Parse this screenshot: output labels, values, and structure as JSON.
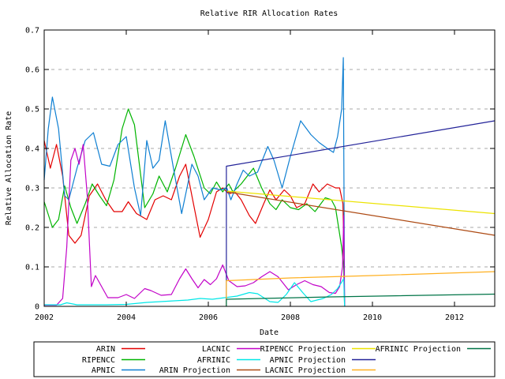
{
  "style": {
    "background": "#ffffff",
    "frame_color": "#000000",
    "grid_color": "#a9a9a9",
    "text_color": "#000000"
  },
  "chart_data": {
    "type": "line",
    "title": "Relative RIR Allocation Rates",
    "xlabel": "Date",
    "ylabel": "Relative Allocation Rate",
    "xlim": [
      2002,
      2012.98
    ],
    "ylim": [
      0,
      0.7
    ],
    "grid": "horizontal dashed gridlines at 0.1 through 0.6",
    "legend_position": "boxed legend centered below plot, 4 columns x 3 rows, column-major",
    "x_ticks": {
      "values": [
        2002,
        2004,
        2006,
        2008,
        2010,
        2012
      ],
      "labels": [
        "2002",
        "2004",
        "2006",
        "2008",
        "2010",
        "2012"
      ]
    },
    "y_ticks": {
      "values": [
        0,
        0.1,
        0.2,
        0.3,
        0.4,
        0.5,
        0.6,
        0.7
      ],
      "labels": [
        "0",
        "0.1",
        "0.2",
        "0.3",
        "0.4",
        "0.5",
        "0.6",
        "0.7"
      ]
    },
    "projection_start_x": 2006.44,
    "actual_data_end_x": 2009.3,
    "series": [
      {
        "name": "ARIN",
        "color": "#e30000",
        "points": [
          [
            2002.0,
            0.42
          ],
          [
            2002.15,
            0.35
          ],
          [
            2002.3,
            0.41
          ],
          [
            2002.45,
            0.33
          ],
          [
            2002.6,
            0.18
          ],
          [
            2002.75,
            0.16
          ],
          [
            2002.9,
            0.18
          ],
          [
            2003.1,
            0.28
          ],
          [
            2003.3,
            0.31
          ],
          [
            2003.5,
            0.27
          ],
          [
            2003.7,
            0.24
          ],
          [
            2003.9,
            0.24
          ],
          [
            2004.05,
            0.265
          ],
          [
            2004.25,
            0.235
          ],
          [
            2004.5,
            0.22
          ],
          [
            2004.7,
            0.27
          ],
          [
            2004.9,
            0.28
          ],
          [
            2005.1,
            0.27
          ],
          [
            2005.3,
            0.33
          ],
          [
            2005.45,
            0.36
          ],
          [
            2005.6,
            0.28
          ],
          [
            2005.8,
            0.175
          ],
          [
            2006.0,
            0.22
          ],
          [
            2006.2,
            0.29
          ],
          [
            2006.35,
            0.3
          ],
          [
            2006.5,
            0.285
          ],
          [
            2006.65,
            0.29
          ],
          [
            2006.8,
            0.27
          ],
          [
            2007.0,
            0.23
          ],
          [
            2007.15,
            0.21
          ],
          [
            2007.35,
            0.26
          ],
          [
            2007.5,
            0.295
          ],
          [
            2007.65,
            0.27
          ],
          [
            2007.85,
            0.295
          ],
          [
            2008.0,
            0.28
          ],
          [
            2008.15,
            0.25
          ],
          [
            2008.35,
            0.26
          ],
          [
            2008.55,
            0.31
          ],
          [
            2008.7,
            0.29
          ],
          [
            2008.9,
            0.31
          ],
          [
            2009.1,
            0.3
          ],
          [
            2009.2,
            0.3
          ],
          [
            2009.28,
            0.26
          ],
          [
            2009.3,
            0.17
          ],
          [
            2009.32,
            0
          ]
        ]
      },
      {
        "name": "RIPENCC",
        "color": "#00b400",
        "points": [
          [
            2002.0,
            0.265
          ],
          [
            2002.2,
            0.2
          ],
          [
            2002.35,
            0.22
          ],
          [
            2002.5,
            0.305
          ],
          [
            2002.65,
            0.25
          ],
          [
            2002.8,
            0.21
          ],
          [
            2003.0,
            0.26
          ],
          [
            2003.17,
            0.31
          ],
          [
            2003.35,
            0.28
          ],
          [
            2003.52,
            0.255
          ],
          [
            2003.7,
            0.32
          ],
          [
            2003.9,
            0.45
          ],
          [
            2004.05,
            0.5
          ],
          [
            2004.2,
            0.46
          ],
          [
            2004.45,
            0.25
          ],
          [
            2004.65,
            0.285
          ],
          [
            2004.8,
            0.33
          ],
          [
            2005.0,
            0.29
          ],
          [
            2005.2,
            0.35
          ],
          [
            2005.45,
            0.435
          ],
          [
            2005.65,
            0.38
          ],
          [
            2005.9,
            0.3
          ],
          [
            2006.05,
            0.285
          ],
          [
            2006.2,
            0.315
          ],
          [
            2006.35,
            0.29
          ],
          [
            2006.5,
            0.31
          ],
          [
            2006.6,
            0.29
          ],
          [
            2006.8,
            0.31
          ],
          [
            2007.1,
            0.35
          ],
          [
            2007.3,
            0.3
          ],
          [
            2007.5,
            0.26
          ],
          [
            2007.65,
            0.245
          ],
          [
            2007.8,
            0.27
          ],
          [
            2008.0,
            0.25
          ],
          [
            2008.2,
            0.245
          ],
          [
            2008.4,
            0.26
          ],
          [
            2008.6,
            0.24
          ],
          [
            2008.85,
            0.275
          ],
          [
            2009.0,
            0.27
          ],
          [
            2009.1,
            0.25
          ],
          [
            2009.25,
            0.15
          ],
          [
            2009.3,
            0.1
          ],
          [
            2009.32,
            0
          ]
        ]
      },
      {
        "name": "APNIC",
        "color": "#0e7fd2",
        "points": [
          [
            2002.0,
            0.32
          ],
          [
            2002.1,
            0.45
          ],
          [
            2002.2,
            0.53
          ],
          [
            2002.35,
            0.45
          ],
          [
            2002.5,
            0.28
          ],
          [
            2002.6,
            0.27
          ],
          [
            2002.8,
            0.35
          ],
          [
            2003.0,
            0.42
          ],
          [
            2003.2,
            0.44
          ],
          [
            2003.4,
            0.36
          ],
          [
            2003.6,
            0.355
          ],
          [
            2003.8,
            0.41
          ],
          [
            2004.0,
            0.43
          ],
          [
            2004.2,
            0.3
          ],
          [
            2004.35,
            0.23
          ],
          [
            2004.5,
            0.42
          ],
          [
            2004.65,
            0.35
          ],
          [
            2004.8,
            0.37
          ],
          [
            2004.95,
            0.47
          ],
          [
            2005.15,
            0.35
          ],
          [
            2005.35,
            0.235
          ],
          [
            2005.6,
            0.36
          ],
          [
            2005.75,
            0.33
          ],
          [
            2005.9,
            0.27
          ],
          [
            2006.1,
            0.3
          ],
          [
            2006.3,
            0.295
          ],
          [
            2006.45,
            0.3
          ],
          [
            2006.55,
            0.27
          ],
          [
            2006.7,
            0.31
          ],
          [
            2006.85,
            0.345
          ],
          [
            2007.0,
            0.33
          ],
          [
            2007.2,
            0.34
          ],
          [
            2007.45,
            0.405
          ],
          [
            2007.6,
            0.37
          ],
          [
            2007.8,
            0.3
          ],
          [
            2008.0,
            0.38
          ],
          [
            2008.25,
            0.47
          ],
          [
            2008.5,
            0.435
          ],
          [
            2008.7,
            0.415
          ],
          [
            2008.9,
            0.4
          ],
          [
            2009.05,
            0.39
          ],
          [
            2009.15,
            0.43
          ],
          [
            2009.25,
            0.5
          ],
          [
            2009.29,
            0.63
          ],
          [
            2009.32,
            0
          ]
        ]
      },
      {
        "name": "LACNIC",
        "color": "#c203c8",
        "points": [
          [
            2002.0,
            0.003
          ],
          [
            2002.3,
            0.003
          ],
          [
            2002.45,
            0.02
          ],
          [
            2002.55,
            0.15
          ],
          [
            2002.65,
            0.37
          ],
          [
            2002.75,
            0.4
          ],
          [
            2002.85,
            0.36
          ],
          [
            2002.95,
            0.41
          ],
          [
            2003.05,
            0.28
          ],
          [
            2003.15,
            0.05
          ],
          [
            2003.25,
            0.078
          ],
          [
            2003.4,
            0.05
          ],
          [
            2003.55,
            0.022
          ],
          [
            2003.8,
            0.022
          ],
          [
            2004.0,
            0.03
          ],
          [
            2004.2,
            0.02
          ],
          [
            2004.45,
            0.045
          ],
          [
            2004.6,
            0.04
          ],
          [
            2004.85,
            0.028
          ],
          [
            2005.1,
            0.03
          ],
          [
            2005.3,
            0.07
          ],
          [
            2005.45,
            0.095
          ],
          [
            2005.6,
            0.07
          ],
          [
            2005.75,
            0.047
          ],
          [
            2005.9,
            0.068
          ],
          [
            2006.05,
            0.055
          ],
          [
            2006.2,
            0.07
          ],
          [
            2006.35,
            0.105
          ],
          [
            2006.5,
            0.065
          ],
          [
            2006.7,
            0.05
          ],
          [
            2006.9,
            0.052
          ],
          [
            2007.1,
            0.06
          ],
          [
            2007.3,
            0.075
          ],
          [
            2007.5,
            0.088
          ],
          [
            2007.7,
            0.075
          ],
          [
            2007.95,
            0.042
          ],
          [
            2008.15,
            0.055
          ],
          [
            2008.35,
            0.065
          ],
          [
            2008.55,
            0.055
          ],
          [
            2008.75,
            0.05
          ],
          [
            2008.95,
            0.035
          ],
          [
            2009.1,
            0.033
          ],
          [
            2009.2,
            0.05
          ],
          [
            2009.27,
            0.1
          ],
          [
            2009.3,
            0.23
          ],
          [
            2009.32,
            0
          ]
        ]
      },
      {
        "name": "AFRINIC",
        "color": "#00e7e7",
        "points": [
          [
            2002.0,
            0.004
          ],
          [
            2002.4,
            0.004
          ],
          [
            2002.55,
            0.009
          ],
          [
            2002.8,
            0.004
          ],
          [
            2003.5,
            0.004
          ],
          [
            2004.0,
            0.005
          ],
          [
            2004.5,
            0.01
          ],
          [
            2005.0,
            0.013
          ],
          [
            2005.5,
            0.016
          ],
          [
            2005.8,
            0.02
          ],
          [
            2006.1,
            0.018
          ],
          [
            2006.4,
            0.022
          ],
          [
            2006.7,
            0.026
          ],
          [
            2007.0,
            0.035
          ],
          [
            2007.2,
            0.032
          ],
          [
            2007.5,
            0.012
          ],
          [
            2007.7,
            0.01
          ],
          [
            2007.9,
            0.03
          ],
          [
            2008.1,
            0.06
          ],
          [
            2008.3,
            0.035
          ],
          [
            2008.5,
            0.012
          ],
          [
            2008.8,
            0.02
          ],
          [
            2009.0,
            0.03
          ],
          [
            2009.15,
            0.045
          ],
          [
            2009.27,
            0.065
          ],
          [
            2009.3,
            0.07
          ],
          [
            2009.32,
            0
          ]
        ]
      },
      {
        "name": "ARIN Projection",
        "color": "#ad4a13",
        "points": [
          [
            2006.44,
            0.29
          ],
          [
            2012.98,
            0.18
          ]
        ]
      },
      {
        "name": "RIPENCC Projection",
        "color": "#ece300",
        "points": [
          [
            2006.44,
            0.292
          ],
          [
            2012.98,
            0.235
          ]
        ]
      },
      {
        "name": "APNIC Projection",
        "color": "#232399",
        "points": [
          [
            2006.44,
            0
          ],
          [
            2006.44,
            0.355
          ],
          [
            2012.98,
            0.47
          ]
        ]
      },
      {
        "name": "LACNIC Projection",
        "color": "#ffb020",
        "points": [
          [
            2006.44,
            0
          ],
          [
            2006.44,
            0.065
          ],
          [
            2008.0,
            0.072
          ],
          [
            2010.0,
            0.078
          ],
          [
            2012.98,
            0.088
          ]
        ]
      },
      {
        "name": "AFRINIC Projection",
        "color": "#007447",
        "points": [
          [
            2006.44,
            0
          ],
          [
            2006.44,
            0.018
          ],
          [
            2009.0,
            0.024
          ],
          [
            2012.98,
            0.031
          ]
        ]
      }
    ]
  },
  "legend": {
    "rows": 3,
    "columns": 4,
    "order": "column-major, same order as series list"
  }
}
